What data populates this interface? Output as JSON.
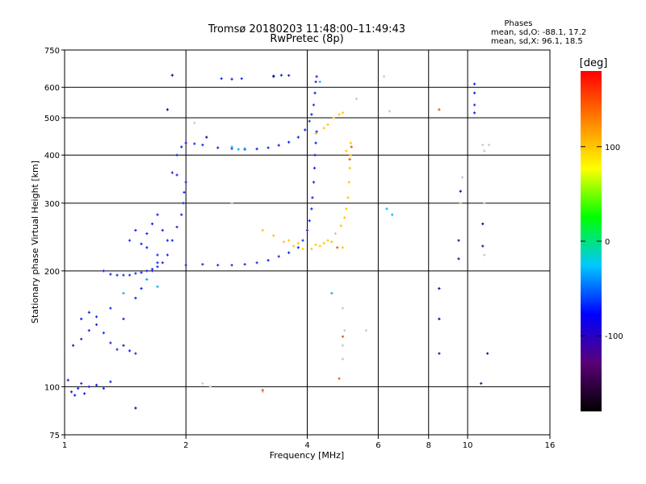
{
  "chart_data": {
    "type": "scatter",
    "title": "Tromsø 20180203 11:48:00–11:49:43",
    "subtitle": "RwPretec (8p)",
    "xlabel": "Frequency [MHz]",
    "ylabel": "Stationary phase Virtual Height [km]",
    "x_scale": "log",
    "y_scale": "log",
    "xlim": [
      1,
      16
    ],
    "ylim": [
      75,
      750
    ],
    "grid": true,
    "x_ticks": [
      "1",
      "2",
      "4",
      "6",
      "8",
      "10",
      "16"
    ],
    "x_tick_values": [
      1,
      2,
      4,
      6,
      8,
      10,
      16
    ],
    "y_ticks": [
      "75",
      "100",
      "200",
      "300",
      "400",
      "500",
      "600",
      "750"
    ],
    "y_tick_values": [
      75,
      100,
      200,
      300,
      400,
      500,
      600,
      750
    ],
    "stats": {
      "heading": "Phases",
      "line_o": "mean, sd,O: -88.1, 17.2",
      "line_x": "mean, sd,X:  96.1, 18.5"
    },
    "colorbar": {
      "label": "[deg]",
      "range": [
        -180,
        180
      ],
      "ticks": [
        "100",
        "0",
        "-100"
      ],
      "tick_values": [
        100,
        0,
        -100
      ],
      "colors": [
        "#000000",
        "#5a0078",
        "#0000ff",
        "#00c8ff",
        "#00ff00",
        "#ffff00",
        "#ff8000",
        "#ff0000"
      ]
    },
    "series": [
      {
        "mode": "O",
        "color": "#1428e6",
        "points": [
          [
            1.02,
            104
          ],
          [
            1.04,
            97
          ],
          [
            1.06,
            95
          ],
          [
            1.08,
            99
          ],
          [
            1.1,
            102
          ],
          [
            1.12,
            96
          ],
          [
            1.15,
            100
          ],
          [
            1.2,
            101
          ],
          [
            1.25,
            99
          ],
          [
            1.3,
            103
          ],
          [
            1.05,
            128
          ],
          [
            1.1,
            133
          ],
          [
            1.15,
            140
          ],
          [
            1.2,
            145
          ],
          [
            1.25,
            138
          ],
          [
            1.3,
            130
          ],
          [
            1.35,
            125
          ],
          [
            1.4,
            128
          ],
          [
            1.45,
            124
          ],
          [
            1.5,
            122
          ],
          [
            1.1,
            150
          ],
          [
            1.15,
            156
          ],
          [
            1.2,
            152
          ],
          [
            1.3,
            160
          ],
          [
            1.4,
            150
          ],
          [
            1.5,
            170
          ],
          [
            1.55,
            180
          ],
          [
            1.6,
            190
          ],
          [
            1.65,
            200
          ],
          [
            1.7,
            210
          ],
          [
            1.25,
            200
          ],
          [
            1.3,
            196
          ],
          [
            1.35,
            195
          ],
          [
            1.4,
            195
          ],
          [
            1.45,
            195
          ],
          [
            1.5,
            197
          ],
          [
            1.55,
            198
          ],
          [
            1.6,
            200
          ],
          [
            1.65,
            202
          ],
          [
            1.7,
            205
          ],
          [
            1.75,
            210
          ],
          [
            1.8,
            220
          ],
          [
            1.85,
            240
          ],
          [
            1.9,
            260
          ],
          [
            1.95,
            280
          ],
          [
            1.97,
            300
          ],
          [
            1.98,
            320
          ],
          [
            2.0,
            340
          ],
          [
            1.9,
            355
          ],
          [
            1.85,
            360
          ],
          [
            1.9,
            400
          ],
          [
            1.95,
            420
          ],
          [
            2.0,
            430
          ],
          [
            2.1,
            428
          ],
          [
            2.2,
            425
          ],
          [
            2.4,
            418
          ],
          [
            2.6,
            416
          ],
          [
            2.8,
            414
          ],
          [
            3.0,
            415
          ],
          [
            3.2,
            418
          ],
          [
            3.4,
            424
          ],
          [
            3.6,
            432
          ],
          [
            3.8,
            445
          ],
          [
            3.95,
            465
          ],
          [
            4.05,
            490
          ],
          [
            4.1,
            510
          ],
          [
            4.15,
            540
          ],
          [
            4.18,
            580
          ],
          [
            4.2,
            620
          ],
          [
            4.22,
            640
          ],
          [
            2.0,
            207
          ],
          [
            2.2,
            208
          ],
          [
            2.4,
            207
          ],
          [
            2.6,
            207
          ],
          [
            2.8,
            208
          ],
          [
            3.0,
            210
          ],
          [
            3.2,
            213
          ],
          [
            3.4,
            218
          ],
          [
            3.6,
            223
          ],
          [
            3.8,
            230
          ],
          [
            3.9,
            240
          ],
          [
            4.0,
            255
          ],
          [
            4.05,
            270
          ],
          [
            4.1,
            290
          ],
          [
            4.12,
            310
          ],
          [
            4.15,
            340
          ],
          [
            4.17,
            370
          ],
          [
            4.18,
            400
          ],
          [
            4.2,
            430
          ],
          [
            4.22,
            460
          ],
          [
            2.45,
            632
          ],
          [
            2.6,
            630
          ],
          [
            2.75,
            632
          ],
          [
            3.3,
            640
          ],
          [
            3.45,
            645
          ],
          [
            3.6,
            644
          ],
          [
            10.4,
            612
          ],
          [
            10.4,
            580
          ],
          [
            10.4,
            540
          ],
          [
            10.4,
            515
          ],
          [
            1.55,
            235
          ],
          [
            1.6,
            250
          ],
          [
            1.65,
            265
          ],
          [
            1.7,
            280
          ],
          [
            1.75,
            255
          ],
          [
            1.8,
            240
          ],
          [
            1.5,
            255
          ],
          [
            1.45,
            240
          ],
          [
            1.6,
            230
          ],
          [
            1.7,
            220
          ]
        ]
      },
      {
        "mode": "X",
        "color": "#ffc800",
        "points": [
          [
            3.1,
            255
          ],
          [
            3.3,
            247
          ],
          [
            3.5,
            238
          ],
          [
            3.7,
            232
          ],
          [
            3.9,
            228
          ],
          [
            4.1,
            228
          ],
          [
            4.3,
            232
          ],
          [
            4.5,
            240
          ],
          [
            4.7,
            250
          ],
          [
            4.85,
            262
          ],
          [
            4.95,
            275
          ],
          [
            5.0,
            290
          ],
          [
            5.05,
            310
          ],
          [
            5.08,
            340
          ],
          [
            5.1,
            370
          ],
          [
            5.12,
            400
          ],
          [
            5.13,
            430
          ],
          [
            4.5,
            480
          ],
          [
            4.65,
            500
          ],
          [
            4.8,
            510
          ],
          [
            4.9,
            515
          ],
          [
            4.4,
            470
          ],
          [
            4.2,
            455
          ],
          [
            5.0,
            410
          ],
          [
            4.9,
            230
          ],
          [
            4.6,
            238
          ],
          [
            4.4,
            236
          ],
          [
            4.2,
            234
          ],
          [
            3.8,
            236
          ],
          [
            3.6,
            240
          ]
        ]
      },
      {
        "mode": "other",
        "color": "#14b4f0",
        "points": [
          [
            2.6,
            420
          ],
          [
            2.7,
            414
          ],
          [
            2.8,
            416
          ],
          [
            1.6,
            190
          ],
          [
            1.7,
            182
          ],
          [
            1.4,
            175
          ],
          [
            6.5,
            280
          ],
          [
            6.3,
            290
          ],
          [
            4.6,
            175
          ],
          [
            4.3,
            620
          ]
        ]
      },
      {
        "mode": "other",
        "color": "#c8c8c8",
        "points": [
          [
            4.9,
            118
          ],
          [
            4.9,
            128
          ],
          [
            4.95,
            140
          ],
          [
            4.9,
            160
          ],
          [
            5.3,
            560
          ],
          [
            5.6,
            140
          ],
          [
            6.2,
            640
          ],
          [
            6.4,
            520
          ],
          [
            9.7,
            350
          ],
          [
            9.6,
            300
          ],
          [
            11.0,
            410
          ],
          [
            11.0,
            300
          ],
          [
            11.0,
            220
          ],
          [
            2.1,
            485
          ],
          [
            2.6,
            300
          ],
          [
            3.1,
            97
          ],
          [
            2.3,
            100
          ],
          [
            2.2,
            102
          ],
          [
            10.9,
            425
          ],
          [
            11.3,
            425
          ]
        ]
      },
      {
        "mode": "other",
        "color": "#14148c",
        "points": [
          [
            8.5,
            180
          ],
          [
            8.5,
            150
          ],
          [
            8.5,
            122
          ],
          [
            9.5,
            240
          ],
          [
            9.5,
            215
          ],
          [
            10.9,
            265
          ],
          [
            10.9,
            232
          ],
          [
            11.2,
            122
          ],
          [
            10.8,
            102
          ],
          [
            9.6,
            322
          ],
          [
            1.5,
            88
          ],
          [
            2.25,
            445
          ],
          [
            1.8,
            525
          ],
          [
            1.85,
            645
          ],
          [
            3.3,
            642
          ]
        ]
      },
      {
        "mode": "other",
        "color": "#e65a14",
        "points": [
          [
            8.5,
            525
          ],
          [
            5.1,
            390
          ],
          [
            5.15,
            420
          ],
          [
            4.9,
            135
          ],
          [
            4.8,
            105
          ],
          [
            4.75,
            230
          ],
          [
            3.1,
            98
          ]
        ]
      }
    ]
  }
}
